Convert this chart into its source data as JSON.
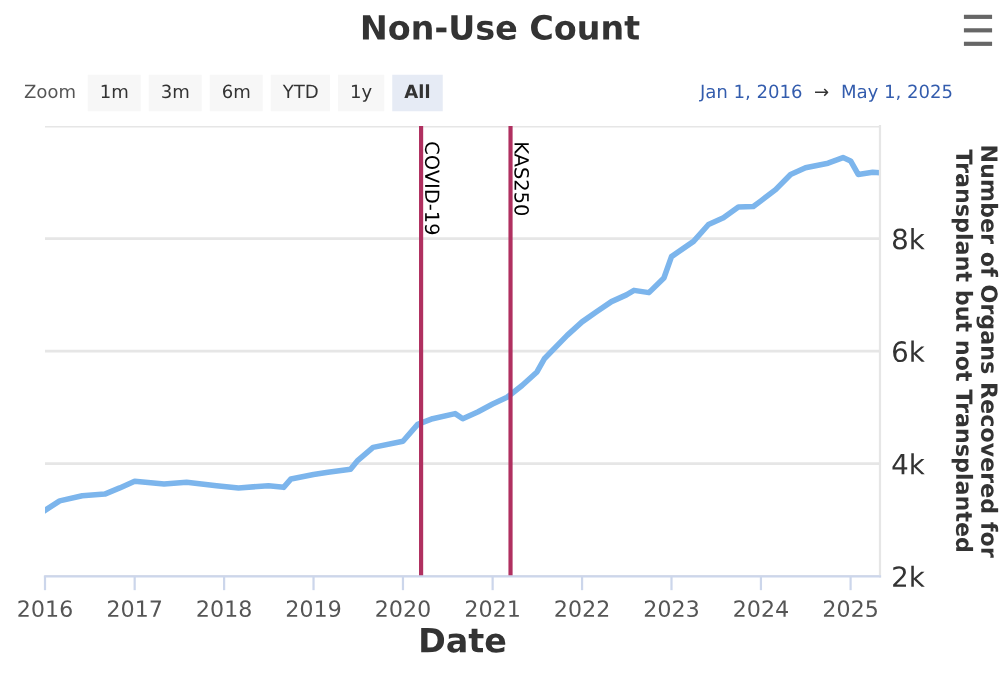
{
  "chart_data": {
    "type": "line",
    "title": "Non-Use Count",
    "xlabel": "Date",
    "ylabel": "Number of Organs Recovered for\nTransplant but not Transplanted",
    "annotations": [
      "Zoom",
      "1m",
      "3m",
      "6m",
      "YTD",
      "1y",
      "All",
      "Jan 1, 2016",
      "→",
      "May 1, 2025"
    ],
    "series": [
      {
        "color": "#7cb5ec",
        "x": [
          "2016-01-01",
          "2016-03",
          "2016-06",
          "2016-09",
          "2016-11",
          "2017-01",
          "2017-05",
          "2017-08",
          "2017-12",
          "2018-03",
          "2018-07",
          "2018-09",
          "2018-10",
          "2019-01",
          "2019-03",
          "2019-06",
          "2019-07",
          "2019-09",
          "2020-01",
          "2020-03",
          "2020-05",
          "2020-08",
          "2020-09",
          "2020-11",
          "2021-01",
          "2021-03",
          "2021-05",
          "2021-07",
          "2021-08",
          "2021-11",
          "2022-01",
          "2022-03",
          "2022-05",
          "2022-07",
          "2022-08",
          "2022-10",
          "2022-12",
          "2023-01",
          "2023-04",
          "2023-06",
          "2023-08",
          "2023-10",
          "2023-12",
          "2024-01",
          "2024-03",
          "2024-05",
          "2024-07",
          "2024-10",
          "2024-12",
          "2025-01",
          "2025-02",
          "2025-04",
          "2025-05"
        ],
        "values": [
          3170,
          3340,
          3430,
          3460,
          3570,
          3690,
          3640,
          3670,
          3610,
          3570,
          3610,
          3580,
          3730,
          3810,
          3850,
          3900,
          4060,
          4290,
          4400,
          4700,
          4800,
          4890,
          4800,
          4920,
          5060,
          5180,
          5390,
          5630,
          5870,
          6280,
          6520,
          6700,
          6880,
          7000,
          7080,
          7040,
          7300,
          7680,
          7950,
          8250,
          8370,
          8560,
          8570,
          8670,
          8870,
          9140,
          9260,
          9340,
          9440,
          9380,
          9140,
          9180,
          9170
        ]
      }
    ],
    "xlim": [
      "2016-01-01",
      "2025-05-01"
    ],
    "xticks": [
      {
        "value": "2016-01-01",
        "label": "2016"
      },
      {
        "value": "2017-01-01",
        "label": "2017"
      },
      {
        "value": "2018-01-01",
        "label": "2018"
      },
      {
        "value": "2019-01-01",
        "label": "2019"
      },
      {
        "value": "2020-01-01",
        "label": "2020"
      },
      {
        "value": "2021-01-01",
        "label": "2021"
      },
      {
        "value": "2022-01-01",
        "label": "2022"
      },
      {
        "value": "2023-01-01",
        "label": "2023"
      },
      {
        "value": "2024-01-01",
        "label": "2024"
      },
      {
        "value": "2025-01-01",
        "label": "2025"
      }
    ],
    "ylim": [
      2000,
      10000
    ],
    "yticks": [
      {
        "value": 2000,
        "label": "2k"
      },
      {
        "value": 4000,
        "label": "4k"
      },
      {
        "value": 6000,
        "label": "6k"
      },
      {
        "value": 8000,
        "label": "8k"
      },
      {
        "value": 10000,
        "label": null
      }
    ],
    "ref_lines": [
      {
        "axis": "x",
        "value": "2020-03-15",
        "label": "COVID-19",
        "color": "#b03060"
      },
      {
        "axis": "x",
        "value": "2021-03-15",
        "label": "KAS250",
        "color": "#b03060"
      }
    ],
    "grid": "y",
    "marker": "none",
    "line_style": "solid"
  }
}
